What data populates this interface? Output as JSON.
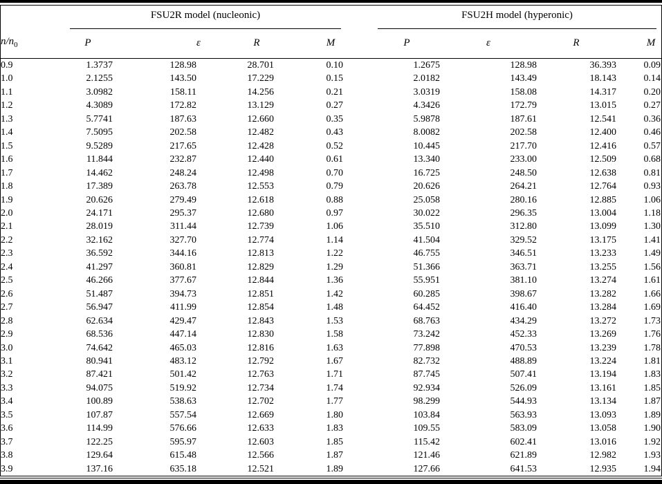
{
  "colors": {
    "text": "#000000",
    "background": "#ffffff",
    "rule": "#000000"
  },
  "table": {
    "row_header": {
      "base_numerator": "n",
      "slash": "/",
      "base_denominator": "n",
      "sub": "0"
    },
    "groups": [
      {
        "label": "FSU2R model (nucleonic)"
      },
      {
        "label": "FSU2H model (hyperonic)"
      }
    ],
    "sub_columns": [
      "P",
      "ε",
      "R",
      "M",
      "P",
      "ε",
      "R",
      "M"
    ],
    "rows": [
      {
        "n": "0.9",
        "values": [
          "1.3737",
          "128.98",
          "28.701",
          "0.10",
          "1.2675",
          "128.98",
          "36.393",
          "0.09"
        ]
      },
      {
        "n": "1.0",
        "values": [
          "2.1255",
          "143.50",
          "17.229",
          "0.15",
          "2.0182",
          "143.49",
          "18.143",
          "0.14"
        ]
      },
      {
        "n": "1.1",
        "values": [
          "3.0982",
          "158.11",
          "14.256",
          "0.21",
          "3.0319",
          "158.08",
          "14.317",
          "0.20"
        ]
      },
      {
        "n": "1.2",
        "values": [
          "4.3089",
          "172.82",
          "13.129",
          "0.27",
          "4.3426",
          "172.79",
          "13.015",
          "0.27"
        ]
      },
      {
        "n": "1.3",
        "values": [
          "5.7741",
          "187.63",
          "12.660",
          "0.35",
          "5.9878",
          "187.61",
          "12.541",
          "0.36"
        ]
      },
      {
        "n": "1.4",
        "values": [
          "7.5095",
          "202.58",
          "12.482",
          "0.43",
          "8.0082",
          "202.58",
          "12.400",
          "0.46"
        ]
      },
      {
        "n": "1.5",
        "values": [
          "9.5289",
          "217.65",
          "12.428",
          "0.52",
          "10.445",
          "217.70",
          "12.416",
          "0.57"
        ]
      },
      {
        "n": "1.6",
        "values": [
          "11.844",
          "232.87",
          "12.440",
          "0.61",
          "13.340",
          "233.00",
          "12.509",
          "0.68"
        ]
      },
      {
        "n": "1.7",
        "values": [
          "14.462",
          "248.24",
          "12.498",
          "0.70",
          "16.725",
          "248.50",
          "12.638",
          "0.81"
        ]
      },
      {
        "n": "1.8",
        "values": [
          "17.389",
          "263.78",
          "12.553",
          "0.79",
          "20.626",
          "264.21",
          "12.764",
          "0.93"
        ]
      },
      {
        "n": "1.9",
        "values": [
          "20.626",
          "279.49",
          "12.618",
          "0.88",
          "25.058",
          "280.16",
          "12.885",
          "1.06"
        ]
      },
      {
        "n": "2.0",
        "values": [
          "24.171",
          "295.37",
          "12.680",
          "0.97",
          "30.022",
          "296.35",
          "13.004",
          "1.18"
        ]
      },
      {
        "n": "2.1",
        "values": [
          "28.019",
          "311.44",
          "12.739",
          "1.06",
          "35.510",
          "312.80",
          "13.099",
          "1.30"
        ]
      },
      {
        "n": "2.2",
        "values": [
          "32.162",
          "327.70",
          "12.774",
          "1.14",
          "41.504",
          "329.52",
          "13.175",
          "1.41"
        ]
      },
      {
        "n": "2.3",
        "values": [
          "36.592",
          "344.16",
          "12.813",
          "1.22",
          "46.755",
          "346.51",
          "13.233",
          "1.49"
        ]
      },
      {
        "n": "2.4",
        "values": [
          "41.297",
          "360.81",
          "12.829",
          "1.29",
          "51.366",
          "363.71",
          "13.255",
          "1.56"
        ]
      },
      {
        "n": "2.5",
        "values": [
          "46.266",
          "377.67",
          "12.844",
          "1.36",
          "55.951",
          "381.10",
          "13.274",
          "1.61"
        ]
      },
      {
        "n": "2.6",
        "values": [
          "51.487",
          "394.73",
          "12.851",
          "1.42",
          "60.285",
          "398.67",
          "13.282",
          "1.66"
        ]
      },
      {
        "n": "2.7",
        "values": [
          "56.947",
          "411.99",
          "12.854",
          "1.48",
          "64.452",
          "416.40",
          "13.284",
          "1.69"
        ]
      },
      {
        "n": "2.8",
        "values": [
          "62.634",
          "429.47",
          "12.843",
          "1.53",
          "68.763",
          "434.29",
          "13.272",
          "1.73"
        ]
      },
      {
        "n": "2.9",
        "values": [
          "68.536",
          "447.14",
          "12.830",
          "1.58",
          "73.242",
          "452.33",
          "13.269",
          "1.76"
        ]
      },
      {
        "n": "3.0",
        "values": [
          "74.642",
          "465.03",
          "12.816",
          "1.63",
          "77.898",
          "470.53",
          "13.239",
          "1.78"
        ]
      },
      {
        "n": "3.1",
        "values": [
          "80.941",
          "483.12",
          "12.792",
          "1.67",
          "82.732",
          "488.89",
          "13.224",
          "1.81"
        ]
      },
      {
        "n": "3.2",
        "values": [
          "87.421",
          "501.42",
          "12.763",
          "1.71",
          "87.745",
          "507.41",
          "13.194",
          "1.83"
        ]
      },
      {
        "n": "3.3",
        "values": [
          "94.075",
          "519.92",
          "12.734",
          "1.74",
          "92.934",
          "526.09",
          "13.161",
          "1.85"
        ]
      },
      {
        "n": "3.4",
        "values": [
          "100.89",
          "538.63",
          "12.702",
          "1.77",
          "98.299",
          "544.93",
          "13.134",
          "1.87"
        ]
      },
      {
        "n": "3.5",
        "values": [
          "107.87",
          "557.54",
          "12.669",
          "1.80",
          "103.84",
          "563.93",
          "13.093",
          "1.89"
        ]
      },
      {
        "n": "3.6",
        "values": [
          "114.99",
          "576.66",
          "12.633",
          "1.83",
          "109.55",
          "583.09",
          "13.058",
          "1.90"
        ]
      },
      {
        "n": "3.7",
        "values": [
          "122.25",
          "595.97",
          "12.603",
          "1.85",
          "115.42",
          "602.41",
          "13.016",
          "1.92"
        ]
      },
      {
        "n": "3.8",
        "values": [
          "129.64",
          "615.48",
          "12.566",
          "1.87",
          "121.46",
          "621.89",
          "12.982",
          "1.93"
        ]
      },
      {
        "n": "3.9",
        "values": [
          "137.16",
          "635.18",
          "12.521",
          "1.89",
          "127.66",
          "641.53",
          "12.935",
          "1.94"
        ]
      }
    ]
  }
}
